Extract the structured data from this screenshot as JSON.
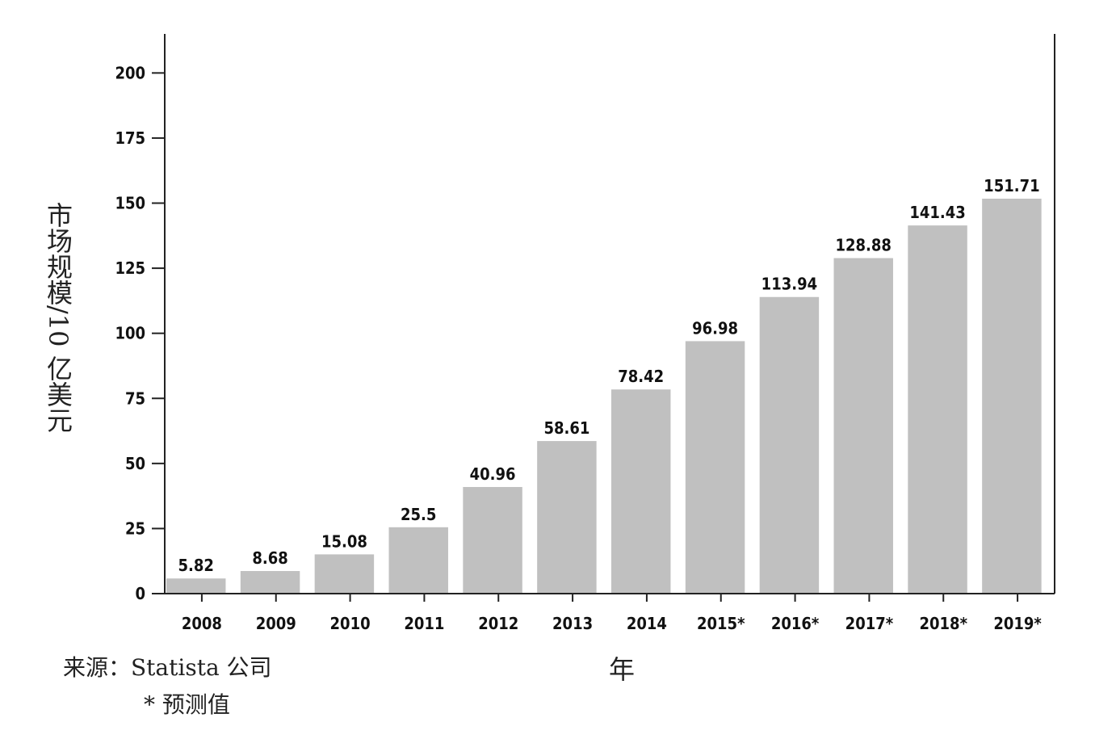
{
  "chart_data": {
    "type": "bar",
    "categories": [
      "2008",
      "2009",
      "2010",
      "2011",
      "2012",
      "2013",
      "2014",
      "2015*",
      "2016*",
      "2017*",
      "2018*",
      "2019*"
    ],
    "values": [
      5.82,
      8.68,
      15.08,
      25.5,
      40.96,
      58.61,
      78.42,
      96.98,
      113.94,
      128.88,
      141.43,
      151.71
    ],
    "data_labels": [
      "5.82",
      "8.68",
      "15.08",
      "25.5",
      "40.96",
      "58.61",
      "78.42",
      "96.98",
      "113.94",
      "128.88",
      "141.43",
      "151.71"
    ],
    "title": "",
    "xlabel": "年",
    "ylabel": "市场规模/10 亿美元",
    "ylim": [
      0,
      215
    ],
    "yticks": [
      0,
      25,
      50,
      75,
      100,
      125,
      150,
      175,
      200
    ],
    "grid": false,
    "legend": "none",
    "bar_color": "#c0c0c0",
    "axis_color": "#222222"
  },
  "notes": {
    "source": "来源：Statista 公司",
    "forecast": "* 预测值"
  }
}
